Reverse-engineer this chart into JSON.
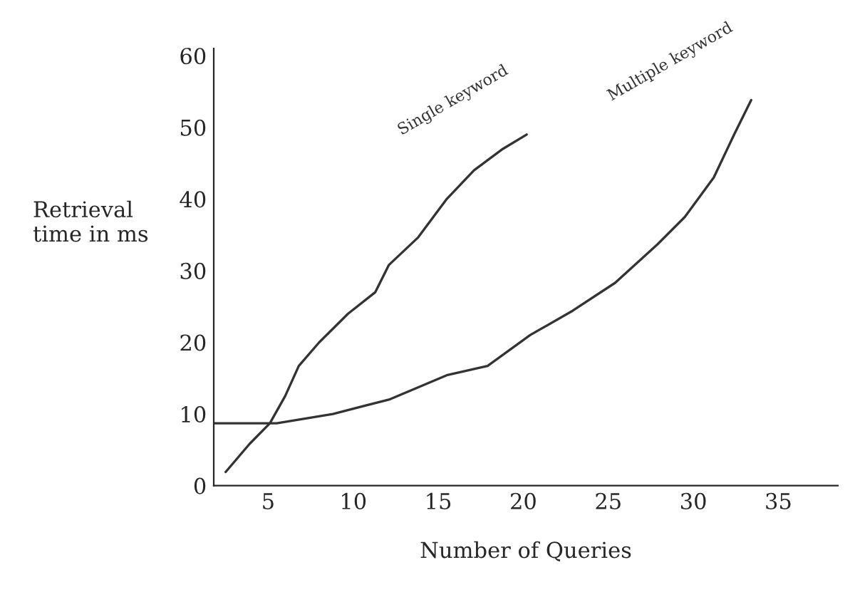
{
  "chart_data": {
    "type": "line",
    "xlabel": "Number of Queries",
    "ylabel": "Retrieval\ntime in ms",
    "xlim": [
      1.8,
      38.5
    ],
    "ylim": [
      0,
      61
    ],
    "xticks": [
      5,
      10,
      15,
      20,
      25,
      30,
      35
    ],
    "yticks": [
      0,
      10,
      20,
      30,
      40,
      50,
      60
    ],
    "grid": false,
    "legend": false,
    "marker": "none",
    "line_style": "solid",
    "series": [
      {
        "name": "Single keyword",
        "color": "#333333",
        "x": [
          2.5,
          3.9,
          5.1,
          6,
          6.8,
          8,
          9.7,
          11.3,
          12.1,
          13.8,
          15.5,
          17.1,
          18.8,
          20.2
        ],
        "values": [
          1.9,
          5.8,
          8.7,
          12.5,
          16.7,
          20,
          24,
          27,
          30.8,
          34.6,
          40,
          44,
          47,
          49
        ]
      },
      {
        "name": "Multiple keyword",
        "color": "#333333",
        "x": [
          1.8,
          5.5,
          8.8,
          12.1,
          15.5,
          17.9,
          20.4,
          22.9,
          25.4,
          27.9,
          29.5,
          31.2,
          32.4,
          33.4
        ],
        "values": [
          8.7,
          8.7,
          10,
          12,
          15.4,
          16.7,
          21,
          24.4,
          28.3,
          33.7,
          37.5,
          43,
          49,
          53.8
        ]
      }
    ]
  }
}
